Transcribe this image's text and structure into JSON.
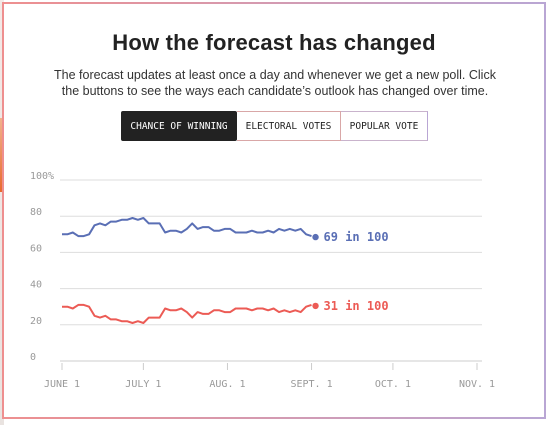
{
  "header": {
    "title": "How the forecast has changed",
    "subtitle_line1": "The forecast updates at least once a day and whenever we get a new poll. Click",
    "subtitle_line2": "the buttons to see the ways each candidate’s outlook has changed over time."
  },
  "tabs": [
    {
      "label": "CHANCE OF WINNING",
      "active": true
    },
    {
      "label": "ELECTORAL VOTES",
      "active": false
    },
    {
      "label": "POPULAR VOTE",
      "active": false
    }
  ],
  "colors": {
    "blue": "#5a6fb5",
    "red": "#ec5b55",
    "grid": "#dddddd",
    "tick_text": "#999999"
  },
  "chart_data": {
    "type": "line",
    "y_ticks": [
      "100%",
      "80",
      "60",
      "40",
      "20",
      "0"
    ],
    "y_tick_values": [
      100,
      80,
      60,
      40,
      20,
      0
    ],
    "ylim": [
      0,
      100
    ],
    "x_ticks": [
      "JUNE 1",
      "JULY 1",
      "AUG. 1",
      "SEPT. 1",
      "OCT. 1",
      "NOV. 1"
    ],
    "x_tick_dates": [
      "2020-06-01",
      "2020-07-01",
      "2020-08-01",
      "2020-09-01",
      "2020-10-01",
      "2020-11-01"
    ],
    "series": [
      {
        "color": "blue",
        "end_label": "69 in 100",
        "end_value": 69,
        "points": [
          [
            "2020-06-01",
            70
          ],
          [
            "2020-06-03",
            70
          ],
          [
            "2020-06-05",
            71
          ],
          [
            "2020-06-07",
            69
          ],
          [
            "2020-06-09",
            69
          ],
          [
            "2020-06-11",
            70
          ],
          [
            "2020-06-13",
            75
          ],
          [
            "2020-06-15",
            76
          ],
          [
            "2020-06-17",
            75
          ],
          [
            "2020-06-19",
            77
          ],
          [
            "2020-06-21",
            77
          ],
          [
            "2020-06-23",
            78
          ],
          [
            "2020-06-25",
            78
          ],
          [
            "2020-06-27",
            79
          ],
          [
            "2020-06-29",
            78
          ],
          [
            "2020-07-01",
            79
          ],
          [
            "2020-07-03",
            76
          ],
          [
            "2020-07-05",
            76
          ],
          [
            "2020-07-07",
            76
          ],
          [
            "2020-07-09",
            71
          ],
          [
            "2020-07-11",
            72
          ],
          [
            "2020-07-13",
            72
          ],
          [
            "2020-07-15",
            71
          ],
          [
            "2020-07-17",
            73
          ],
          [
            "2020-07-19",
            76
          ],
          [
            "2020-07-21",
            73
          ],
          [
            "2020-07-23",
            74
          ],
          [
            "2020-07-25",
            74
          ],
          [
            "2020-07-27",
            72
          ],
          [
            "2020-07-29",
            72
          ],
          [
            "2020-07-31",
            73
          ],
          [
            "2020-08-02",
            73
          ],
          [
            "2020-08-04",
            71
          ],
          [
            "2020-08-06",
            71
          ],
          [
            "2020-08-08",
            71
          ],
          [
            "2020-08-10",
            72
          ],
          [
            "2020-08-12",
            71
          ],
          [
            "2020-08-14",
            71
          ],
          [
            "2020-08-16",
            72
          ],
          [
            "2020-08-18",
            71
          ],
          [
            "2020-08-20",
            73
          ],
          [
            "2020-08-22",
            72
          ],
          [
            "2020-08-24",
            73
          ],
          [
            "2020-08-26",
            72
          ],
          [
            "2020-08-28",
            73
          ],
          [
            "2020-08-30",
            70
          ],
          [
            "2020-09-01",
            69
          ]
        ]
      },
      {
        "color": "red",
        "end_label": "31 in 100",
        "end_value": 31,
        "points": [
          [
            "2020-06-01",
            30
          ],
          [
            "2020-06-03",
            30
          ],
          [
            "2020-06-05",
            29
          ],
          [
            "2020-06-07",
            31
          ],
          [
            "2020-06-09",
            31
          ],
          [
            "2020-06-11",
            30
          ],
          [
            "2020-06-13",
            25
          ],
          [
            "2020-06-15",
            24
          ],
          [
            "2020-06-17",
            25
          ],
          [
            "2020-06-19",
            23
          ],
          [
            "2020-06-21",
            23
          ],
          [
            "2020-06-23",
            22
          ],
          [
            "2020-06-25",
            22
          ],
          [
            "2020-06-27",
            21
          ],
          [
            "2020-06-29",
            22
          ],
          [
            "2020-07-01",
            21
          ],
          [
            "2020-07-03",
            24
          ],
          [
            "2020-07-05",
            24
          ],
          [
            "2020-07-07",
            24
          ],
          [
            "2020-07-09",
            29
          ],
          [
            "2020-07-11",
            28
          ],
          [
            "2020-07-13",
            28
          ],
          [
            "2020-07-15",
            29
          ],
          [
            "2020-07-17",
            27
          ],
          [
            "2020-07-19",
            24
          ],
          [
            "2020-07-21",
            27
          ],
          [
            "2020-07-23",
            26
          ],
          [
            "2020-07-25",
            26
          ],
          [
            "2020-07-27",
            28
          ],
          [
            "2020-07-29",
            28
          ],
          [
            "2020-07-31",
            27
          ],
          [
            "2020-08-02",
            27
          ],
          [
            "2020-08-04",
            29
          ],
          [
            "2020-08-06",
            29
          ],
          [
            "2020-08-08",
            29
          ],
          [
            "2020-08-10",
            28
          ],
          [
            "2020-08-12",
            29
          ],
          [
            "2020-08-14",
            29
          ],
          [
            "2020-08-16",
            28
          ],
          [
            "2020-08-18",
            29
          ],
          [
            "2020-08-20",
            27
          ],
          [
            "2020-08-22",
            28
          ],
          [
            "2020-08-24",
            27
          ],
          [
            "2020-08-26",
            28
          ],
          [
            "2020-08-28",
            27
          ],
          [
            "2020-08-30",
            30
          ],
          [
            "2020-09-01",
            31
          ]
        ]
      }
    ]
  }
}
